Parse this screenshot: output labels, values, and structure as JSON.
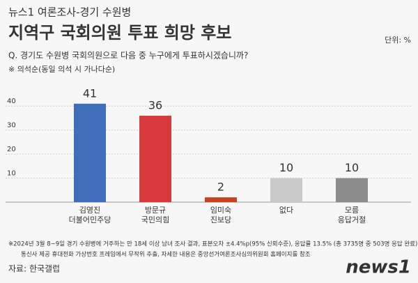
{
  "chart_data": {
    "type": "bar",
    "kicker": "뉴스1 여론조사-경기 수원병",
    "title": "지역구 국회의원 투표 희망 후보",
    "unit": "단위: %",
    "question": "Q. 경기도 수원병 국회의원으로 다음 중 누구에게 투표하시겠습니까?",
    "note": "※ 의석순(동일 의석 시 가나다순)",
    "categories": [
      "김영진",
      "방문규",
      "임미숙",
      "없다",
      "모름"
    ],
    "sublabels": [
      "더불어민주당",
      "국민의힘",
      "진보당",
      null,
      "응답거절"
    ],
    "values": [
      41,
      36,
      2,
      10,
      10
    ],
    "colors": [
      "#3f6fb8",
      "#d8393c",
      "#c8421e",
      "#c9c9c9",
      "#8c8c8c"
    ],
    "ylim": [
      0,
      45
    ],
    "yticks": [
      10,
      20,
      30,
      40
    ],
    "grid": true,
    "footnotes": [
      "※2024년 3월 8~9일 경기 수원병에 거주하는 만 18세 이상 남녀 조사 결과, 표본오차 ±4.4%p(95% 신뢰수준), 응답률 13.5% (총 3735명 중 503명 응답 완료),",
      "통신사 제공 휴대전화 가상번호 프레임에서 무작위 추출, 자세한 내용은 중앙선거여론조사심의위원회 홈페이지를 참조"
    ],
    "source": "자료: 한국갤럽",
    "logo": "news1"
  }
}
